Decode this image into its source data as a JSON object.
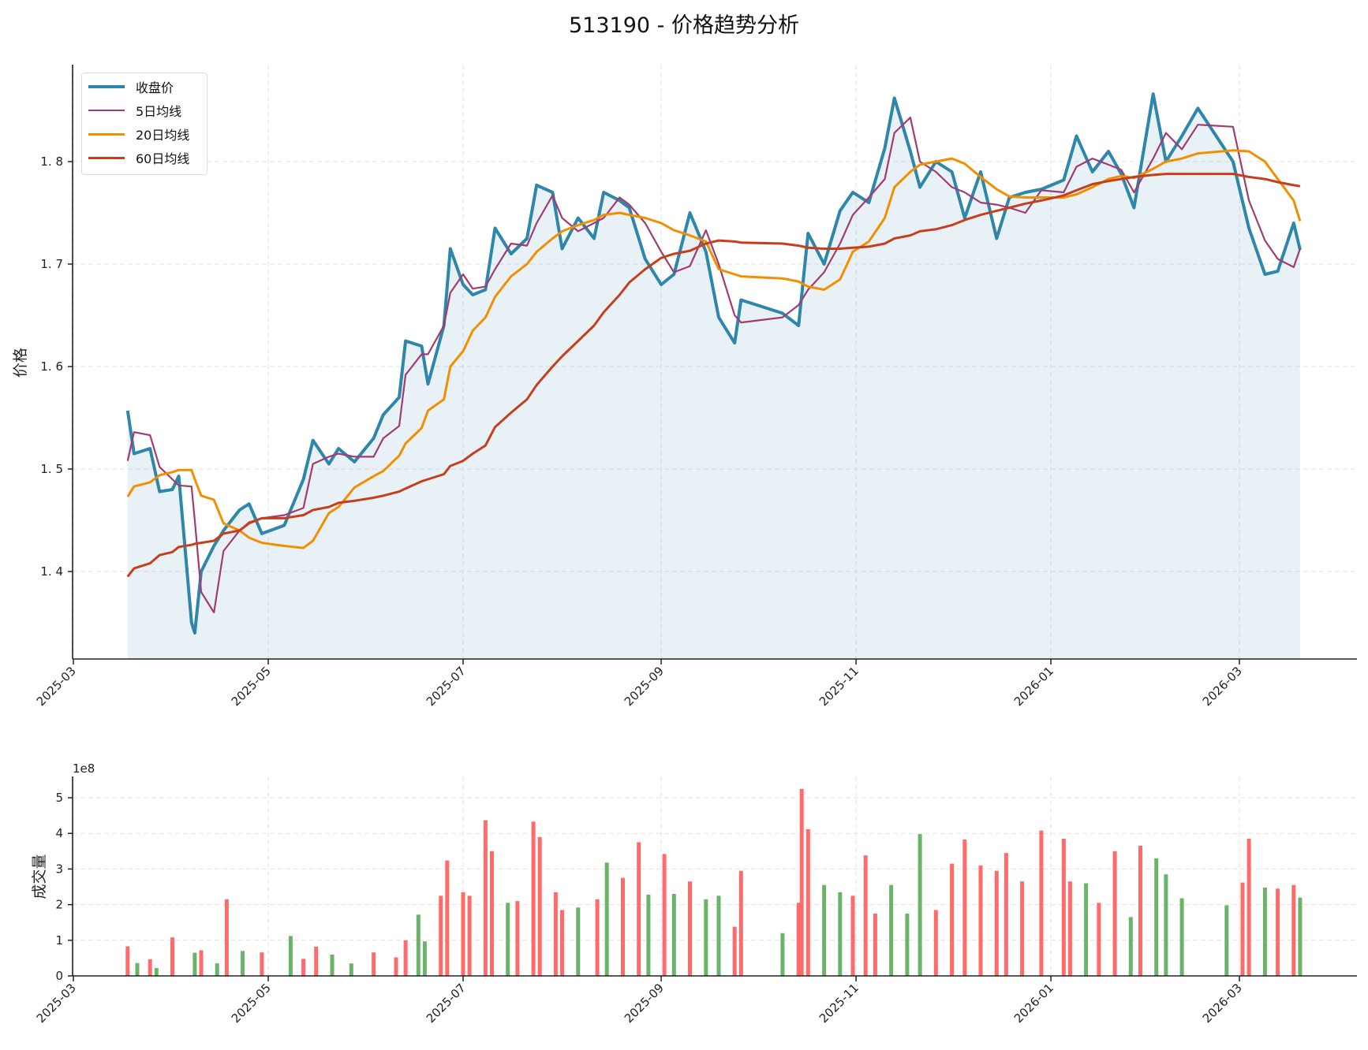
{
  "title": "513190 - 价格趋势分析",
  "price_panel": {
    "ylabel": "价格",
    "yticks": [
      "1.4",
      "1.5",
      "1.6",
      "1.7",
      "1.8"
    ],
    "xticks": [
      "2025-03",
      "2025-05",
      "2025-07",
      "2025-09",
      "2025-11",
      "2026-01",
      "2026-03"
    ],
    "legend": [
      {
        "label": "收盘价",
        "color": "#2e86ab"
      },
      {
        "label": "5日均线",
        "color": "#a23b72"
      },
      {
        "label": "20日均线",
        "color": "#f18f01"
      },
      {
        "label": "60日均线",
        "color": "#c73e1d"
      }
    ]
  },
  "volume_panel": {
    "ylabel": "成交量",
    "offset_label": "1e8",
    "yticks": [
      "0",
      "1",
      "2",
      "3",
      "4",
      "5"
    ],
    "xticks": [
      "2025-03",
      "2025-05",
      "2025-07",
      "2025-09",
      "2025-11",
      "2026-01",
      "2026-03"
    ],
    "up_color": "#ff6b6b",
    "down_color": "#6ab46a"
  },
  "chart_data": [
    {
      "type": "line",
      "title": "513190 - 价格趋势分析",
      "xlabel": "",
      "ylabel": "价格",
      "ylim": [
        1.315,
        1.895
      ],
      "xlim": [
        "2025-03-01",
        "2026-04-20"
      ],
      "grid": true,
      "legend_position": "upper left",
      "x": [
        "2025-03-18",
        "2025-03-20",
        "2025-03-25",
        "2025-03-28",
        "2025-04-01",
        "2025-04-03",
        "2025-04-07",
        "2025-04-08",
        "2025-04-10",
        "2025-04-14",
        "2025-04-17",
        "2025-04-22",
        "2025-04-25",
        "2025-04-29",
        "2025-05-06",
        "2025-05-12",
        "2025-05-15",
        "2025-05-20",
        "2025-05-23",
        "2025-05-28",
        "2025-06-03",
        "2025-06-06",
        "2025-06-11",
        "2025-06-13",
        "2025-06-18",
        "2025-06-20",
        "2025-06-25",
        "2025-06-27",
        "2025-07-01",
        "2025-07-04",
        "2025-07-08",
        "2025-07-11",
        "2025-07-16",
        "2025-07-21",
        "2025-07-24",
        "2025-07-29",
        "2025-08-01",
        "2025-08-06",
        "2025-08-11",
        "2025-08-14",
        "2025-08-19",
        "2025-08-22",
        "2025-08-27",
        "2025-09-01",
        "2025-09-05",
        "2025-09-10",
        "2025-09-15",
        "2025-09-19",
        "2025-09-24",
        "2025-09-26",
        "2025-10-09",
        "2025-10-14",
        "2025-10-17",
        "2025-10-22",
        "2025-10-27",
        "2025-10-31",
        "2025-11-05",
        "2025-11-10",
        "2025-11-13",
        "2025-11-18",
        "2025-11-21",
        "2025-11-26",
        "2025-12-01",
        "2025-12-05",
        "2025-12-10",
        "2025-12-15",
        "2025-12-19",
        "2025-12-24",
        "2025-12-29",
        "2026-01-05",
        "2026-01-09",
        "2026-01-14",
        "2026-01-19",
        "2026-01-23",
        "2026-01-27",
        "2026-02-02",
        "2026-02-06",
        "2026-02-11",
        "2026-02-16",
        "2026-02-27",
        "2026-03-04",
        "2026-03-09",
        "2026-03-13",
        "2026-03-18",
        "2026-03-20"
      ],
      "series": [
        {
          "name": "收盘价",
          "values": [
            1.557,
            1.515,
            1.52,
            1.478,
            1.48,
            1.493,
            1.35,
            1.34,
            1.4,
            1.425,
            1.44,
            1.46,
            1.466,
            1.437,
            1.445,
            1.49,
            1.528,
            1.505,
            1.52,
            1.507,
            1.53,
            1.553,
            1.57,
            1.625,
            1.62,
            1.583,
            1.64,
            1.715,
            1.68,
            1.67,
            1.675,
            1.735,
            1.71,
            1.725,
            1.777,
            1.77,
            1.715,
            1.745,
            1.725,
            1.77,
            1.762,
            1.755,
            1.705,
            1.68,
            1.69,
            1.75,
            1.712,
            1.648,
            1.623,
            1.665,
            1.652,
            1.64,
            1.73,
            1.7,
            1.752,
            1.77,
            1.76,
            1.813,
            1.862,
            1.81,
            1.775,
            1.8,
            1.79,
            1.745,
            1.79,
            1.725,
            1.765,
            1.77,
            1.773,
            1.782,
            1.825,
            1.79,
            1.81,
            1.788,
            1.755,
            1.866,
            1.8,
            1.825,
            1.852,
            1.8,
            1.735,
            1.69,
            1.693,
            1.74,
            1.714
          ]
        },
        {
          "name": "5日均线",
          "values": [
            1.508,
            1.536,
            1.533,
            1.502,
            1.49,
            1.484,
            1.483,
            1.45,
            1.38,
            1.36,
            1.42,
            1.44,
            1.448,
            1.452,
            1.455,
            1.462,
            1.505,
            1.512,
            1.515,
            1.512,
            1.512,
            1.53,
            1.542,
            1.592,
            1.612,
            1.612,
            1.64,
            1.672,
            1.69,
            1.676,
            1.678,
            1.695,
            1.72,
            1.718,
            1.74,
            1.767,
            1.745,
            1.732,
            1.74,
            1.745,
            1.765,
            1.758,
            1.74,
            1.712,
            1.692,
            1.698,
            1.733,
            1.7,
            1.65,
            1.643,
            1.648,
            1.66,
            1.675,
            1.692,
            1.72,
            1.748,
            1.765,
            1.783,
            1.828,
            1.843,
            1.8,
            1.79,
            1.775,
            1.77,
            1.76,
            1.758,
            1.755,
            1.75,
            1.772,
            1.77,
            1.795,
            1.803,
            1.797,
            1.792,
            1.77,
            1.803,
            1.828,
            1.812,
            1.836,
            1.834,
            1.762,
            1.723,
            1.705,
            1.697,
            1.715
          ]
        },
        {
          "name": "20日均线",
          "values": [
            1.473,
            1.483,
            1.487,
            1.494,
            1.497,
            1.499,
            1.499,
            1.49,
            1.474,
            1.47,
            1.447,
            1.44,
            1.433,
            1.428,
            1.425,
            1.423,
            1.43,
            1.457,
            1.463,
            1.482,
            1.493,
            1.498,
            1.513,
            1.525,
            1.54,
            1.557,
            1.568,
            1.6,
            1.615,
            1.635,
            1.648,
            1.668,
            1.688,
            1.7,
            1.712,
            1.725,
            1.732,
            1.738,
            1.743,
            1.748,
            1.75,
            1.748,
            1.745,
            1.74,
            1.733,
            1.728,
            1.722,
            1.695,
            1.69,
            1.688,
            1.686,
            1.683,
            1.678,
            1.675,
            1.685,
            1.712,
            1.722,
            1.745,
            1.775,
            1.79,
            1.797,
            1.8,
            1.803,
            1.798,
            1.785,
            1.773,
            1.766,
            1.765,
            1.765,
            1.765,
            1.768,
            1.775,
            1.783,
            1.786,
            1.784,
            1.793,
            1.8,
            1.803,
            1.808,
            1.811,
            1.81,
            1.8,
            1.783,
            1.762,
            1.742
          ]
        },
        {
          "name": "60日均线",
          "values": [
            1.395,
            1.403,
            1.408,
            1.416,
            1.419,
            1.424,
            1.426,
            1.427,
            1.428,
            1.43,
            1.437,
            1.44,
            1.447,
            1.452,
            1.452,
            1.455,
            1.46,
            1.463,
            1.467,
            1.469,
            1.472,
            1.474,
            1.478,
            1.481,
            1.488,
            1.49,
            1.495,
            1.503,
            1.508,
            1.515,
            1.523,
            1.541,
            1.555,
            1.568,
            1.582,
            1.6,
            1.61,
            1.625,
            1.64,
            1.653,
            1.67,
            1.682,
            1.695,
            1.706,
            1.71,
            1.713,
            1.72,
            1.723,
            1.722,
            1.721,
            1.72,
            1.718,
            1.716,
            1.715,
            1.715,
            1.716,
            1.717,
            1.72,
            1.725,
            1.728,
            1.732,
            1.734,
            1.738,
            1.743,
            1.748,
            1.752,
            1.755,
            1.759,
            1.762,
            1.767,
            1.772,
            1.778,
            1.781,
            1.783,
            1.785,
            1.787,
            1.788,
            1.788,
            1.788,
            1.788,
            1.785,
            1.783,
            1.78,
            1.777,
            1.776
          ]
        }
      ]
    },
    {
      "type": "bar",
      "title": "",
      "xlabel": "",
      "ylabel": "成交量",
      "ylim": [
        0,
        5.5
      ],
      "unit_multiplier": "1e8",
      "grid": true,
      "note": "Bars colored red (close up) or green (close down); values in units of 1e8, estimated",
      "x": [
        "2025-03-18",
        "2025-03-21",
        "2025-03-25",
        "2025-03-27",
        "2025-04-01",
        "2025-04-08",
        "2025-04-10",
        "2025-04-15",
        "2025-04-18",
        "2025-04-23",
        "2025-04-29",
        "2025-05-08",
        "2025-05-12",
        "2025-05-16",
        "2025-05-21",
        "2025-05-27",
        "2025-06-03",
        "2025-06-10",
        "2025-06-13",
        "2025-06-17",
        "2025-06-19",
        "2025-06-24",
        "2025-06-26",
        "2025-07-01",
        "2025-07-03",
        "2025-07-08",
        "2025-07-10",
        "2025-07-15",
        "2025-07-18",
        "2025-07-23",
        "2025-07-25",
        "2025-07-30",
        "2025-08-01",
        "2025-08-06",
        "2025-08-12",
        "2025-08-15",
        "2025-08-20",
        "2025-08-25",
        "2025-08-28",
        "2025-09-02",
        "2025-09-05",
        "2025-09-10",
        "2025-09-15",
        "2025-09-19",
        "2025-09-24",
        "2025-09-26",
        "2025-10-09",
        "2025-10-14",
        "2025-10-15",
        "2025-10-17",
        "2025-10-22",
        "2025-10-27",
        "2025-10-31",
        "2025-11-04",
        "2025-11-07",
        "2025-11-12",
        "2025-11-17",
        "2025-11-21",
        "2025-11-26",
        "2025-12-01",
        "2025-12-05",
        "2025-12-10",
        "2025-12-15",
        "2025-12-18",
        "2025-12-23",
        "2025-12-29",
        "2026-01-05",
        "2026-01-07",
        "2026-01-12",
        "2026-01-16",
        "2026-01-21",
        "2026-01-26",
        "2026-01-29",
        "2026-02-03",
        "2026-02-06",
        "2026-02-11",
        "2026-02-25",
        "2026-03-02",
        "2026-03-04",
        "2026-03-09",
        "2026-03-13",
        "2026-03-18",
        "2026-03-20"
      ],
      "values": [
        0.83,
        0.36,
        0.47,
        0.22,
        1.08,
        0.65,
        0.72,
        0.35,
        2.15,
        0.7,
        0.66,
        1.12,
        0.48,
        0.82,
        0.6,
        0.35,
        0.66,
        0.52,
        1.0,
        1.72,
        0.97,
        2.25,
        3.24,
        2.35,
        2.25,
        4.37,
        3.5,
        2.05,
        2.1,
        4.33,
        3.9,
        2.35,
        1.85,
        1.92,
        2.15,
        3.18,
        2.75,
        3.75,
        2.28,
        3.42,
        2.3,
        2.65,
        2.15,
        2.25,
        1.38,
        2.95,
        1.2,
        2.05,
        5.25,
        4.12,
        2.55,
        2.35,
        2.25,
        3.38,
        1.75,
        2.55,
        1.75,
        3.98,
        1.85,
        3.15,
        3.83,
        3.1,
        2.95,
        3.45,
        2.65,
        4.08,
        3.85,
        2.65,
        2.6,
        2.05,
        3.5,
        1.65,
        3.65,
        3.3,
        2.85,
        2.18,
        1.98,
        2.62,
        3.85,
        2.48,
        2.45,
        2.55,
        2.2
      ],
      "colors": [
        "up",
        "down",
        "up",
        "down",
        "up",
        "down",
        "up",
        "down",
        "up",
        "down",
        "up",
        "down",
        "up",
        "up",
        "down",
        "down",
        "up",
        "up",
        "up",
        "down",
        "down",
        "up",
        "up",
        "up",
        "up",
        "up",
        "up",
        "down",
        "up",
        "up",
        "up",
        "up",
        "up",
        "down",
        "up",
        "down",
        "up",
        "up",
        "down",
        "up",
        "down",
        "up",
        "down",
        "down",
        "up",
        "up",
        "down",
        "up",
        "up",
        "up",
        "down",
        "down",
        "up",
        "up",
        "up",
        "down",
        "down",
        "down",
        "up",
        "up",
        "up",
        "up",
        "up",
        "up",
        "up",
        "up",
        "up",
        "up",
        "down",
        "up",
        "up",
        "down",
        "up",
        "down",
        "down",
        "down",
        "down",
        "up",
        "up",
        "down",
        "up",
        "up",
        "down"
      ]
    }
  ]
}
